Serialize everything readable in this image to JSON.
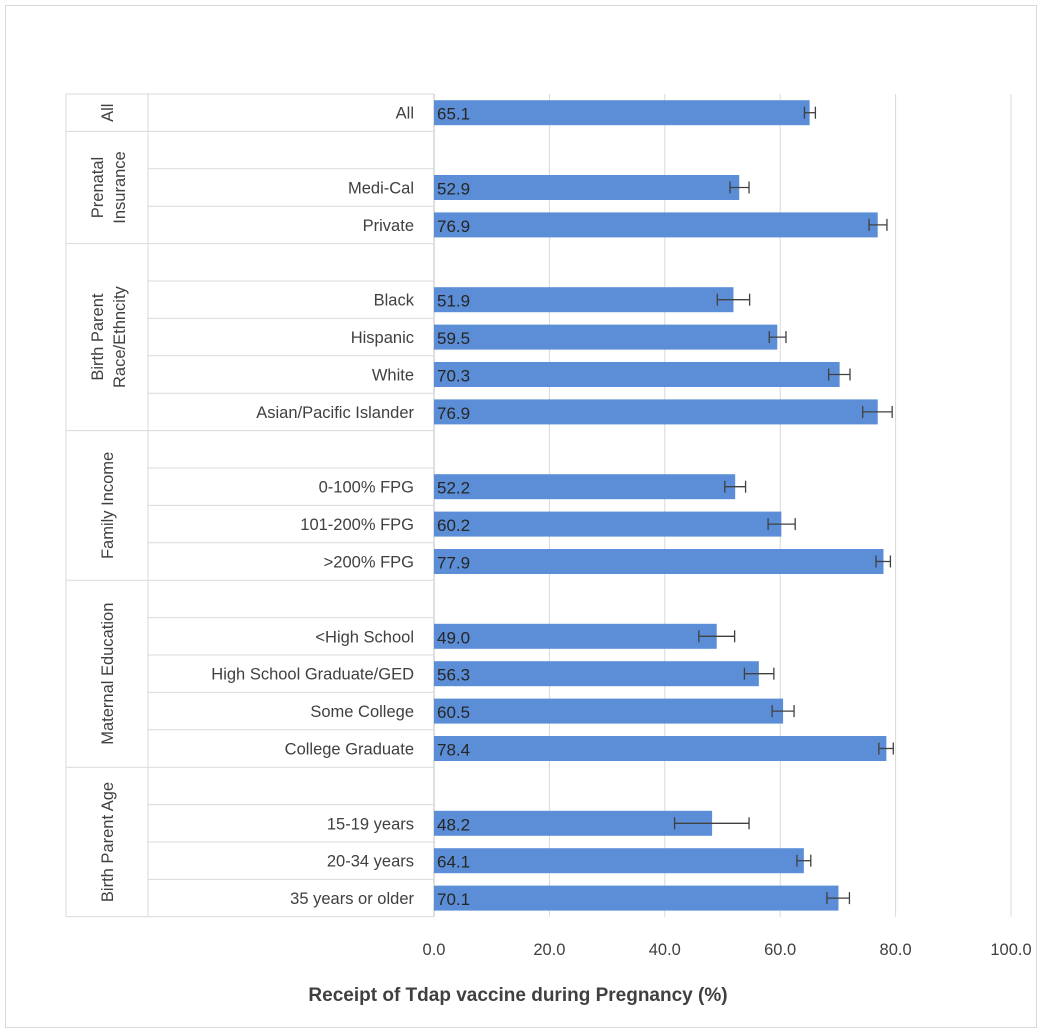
{
  "chart_data": {
    "type": "bar",
    "orientation": "horizontal",
    "xlabel": "Receipt of Tdap vaccine during Pregnancy (%)",
    "xlim": [
      0,
      100
    ],
    "x_ticks": [
      "0.0",
      "20.0",
      "40.0",
      "60.0",
      "80.0",
      "100.0"
    ],
    "grid": true,
    "bar_color": "#5b8ed6",
    "groups": [
      {
        "label": "All",
        "rows": [
          {
            "category": "All",
            "value": 65.1,
            "label": "65.1",
            "err_low": 64.2,
            "err_high": 66.1
          }
        ]
      },
      {
        "label": "Prenatal Insurance",
        "rows": [
          {
            "category": "",
            "value": null
          },
          {
            "category": "Medi-Cal",
            "value": 52.9,
            "label": "52.9",
            "err_low": 51.3,
            "err_high": 54.6
          },
          {
            "category": "Private",
            "value": 76.9,
            "label": "76.9",
            "err_low": 75.4,
            "err_high": 78.5
          }
        ]
      },
      {
        "label": "Birth Parent Race/Ethncity",
        "rows": [
          {
            "category": "",
            "value": null
          },
          {
            "category": "Black",
            "value": 51.9,
            "label": "51.9",
            "err_low": 49.1,
            "err_high": 54.7
          },
          {
            "category": "Hispanic",
            "value": 59.5,
            "label": "59.5",
            "err_low": 58.1,
            "err_high": 61.0
          },
          {
            "category": "White",
            "value": 70.3,
            "label": "70.3",
            "err_low": 68.4,
            "err_high": 72.1
          },
          {
            "category": "Asian/Pacific Islander",
            "value": 76.9,
            "label": "76.9",
            "err_low": 74.3,
            "err_high": 79.4
          }
        ]
      },
      {
        "label": "Family Income",
        "rows": [
          {
            "category": "",
            "value": null
          },
          {
            "category": "0-100% FPG",
            "value": 52.2,
            "label": "52.2",
            "err_low": 50.4,
            "err_high": 54.0
          },
          {
            "category": "101-200% FPG",
            "value": 60.2,
            "label": "60.2",
            "err_low": 57.9,
            "err_high": 62.6
          },
          {
            "category": ">200% FPG",
            "value": 77.9,
            "label": "77.9",
            "err_low": 76.6,
            "err_high": 79.1
          }
        ]
      },
      {
        "label": "Maternal Education",
        "rows": [
          {
            "category": "",
            "value": null
          },
          {
            "category": "<High School",
            "value": 49.0,
            "label": "49.0",
            "err_low": 45.9,
            "err_high": 52.1
          },
          {
            "category": "High School Graduate/GED",
            "value": 56.3,
            "label": "56.3",
            "err_low": 53.8,
            "err_high": 58.9
          },
          {
            "category": "Some College",
            "value": 60.5,
            "label": "60.5",
            "err_low": 58.6,
            "err_high": 62.4
          },
          {
            "category": "College Graduate",
            "value": 78.4,
            "label": "78.4",
            "err_low": 77.1,
            "err_high": 79.6
          }
        ]
      },
      {
        "label": "Birth Parent Age",
        "rows": [
          {
            "category": "",
            "value": null
          },
          {
            "category": "15-19 years",
            "value": 48.2,
            "label": "48.2",
            "err_low": 41.7,
            "err_high": 54.6
          },
          {
            "category": "20-34 years",
            "value": 64.1,
            "label": "64.1",
            "err_low": 62.9,
            "err_high": 65.3
          },
          {
            "category": "35 years or older",
            "value": 70.1,
            "label": "70.1",
            "err_low": 68.1,
            "err_high": 72.0
          }
        ]
      }
    ]
  }
}
